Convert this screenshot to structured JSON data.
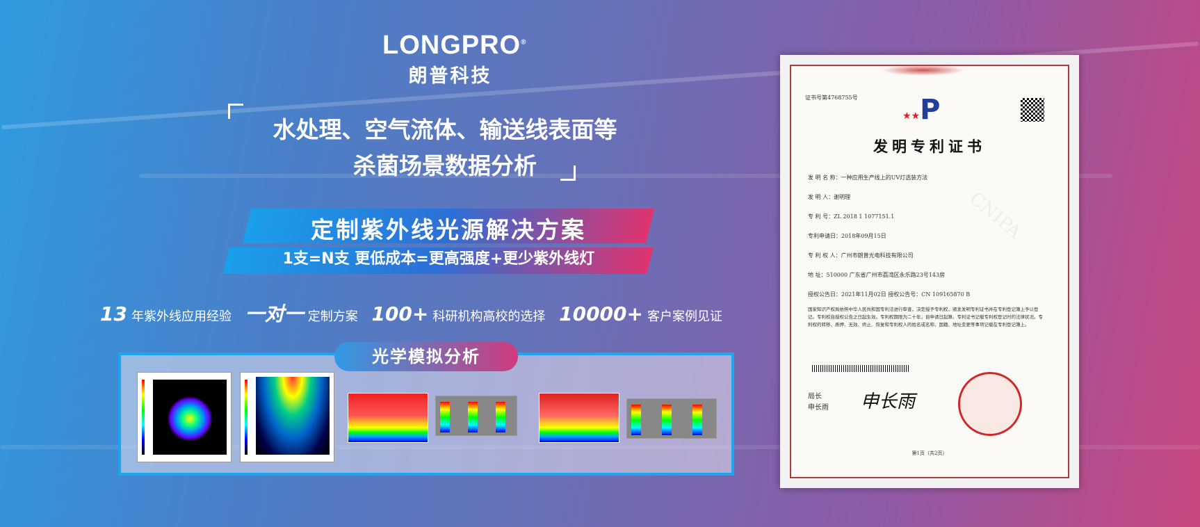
{
  "logo": {
    "en": "LONGPRO",
    "reg": "®",
    "cn": "朗普科技"
  },
  "headline": {
    "line1": "水处理、空气流体、输送线表面等",
    "line2": "杀菌场景数据分析"
  },
  "ribbon": {
    "title": "定制紫外线光源解决方案",
    "subtitle": "1支=N支   更低成本=更高强度+更少紫外线灯"
  },
  "stats": [
    {
      "num": "13",
      "text": "年紫外线应用经验"
    },
    {
      "num": "一对一",
      "text": "定制方案"
    },
    {
      "num": "100+",
      "text": "科研机构高校的选择"
    },
    {
      "num": "10000+",
      "text": "客户案例见证"
    }
  ],
  "panel": {
    "title": "光学模拟分析"
  },
  "certificate": {
    "cert_no": "证书号第4768755号",
    "title": "发明专利证书",
    "fields": [
      "发 明 名 称：一种应用生产线上的UV灯选装方法",
      "发  明  人：谢明理",
      "专  利  号：ZL 2018 1 1077151.1",
      "专利申请日：2018年09月15日",
      "专 利 权 人：广州市朗普光电科技有限公司",
      "地      址：510000 广东省广州市荔湾区永乐路23号143房",
      "授权公告日：2021年11月02日        授权公告号：CN 109165870 B"
    ],
    "body": "国家知识产权局依照中华人民共和国专利法进行审查，决定授予专利权，颁发发明专利证书并在专利登记簿上予以登记。专利权自授权公告之日起生效。专利权期限为二十年，自申请日起算。专利证书记载专利权登记时的法律状况。专利权的转移、质押、无效、终止、恢复和专利权人的姓名或名称、国籍、地址变更等事项记载在专利登记簿上。",
    "signer_title": "局长",
    "signer_name": "申长雨",
    "signature": "申长雨",
    "page": "第1页（共2页）",
    "watermark": "CNIPA"
  },
  "colors": {
    "accent_blue": "#1aa0ea",
    "accent_pink": "#e0336e",
    "seal_red": "#d02828"
  }
}
